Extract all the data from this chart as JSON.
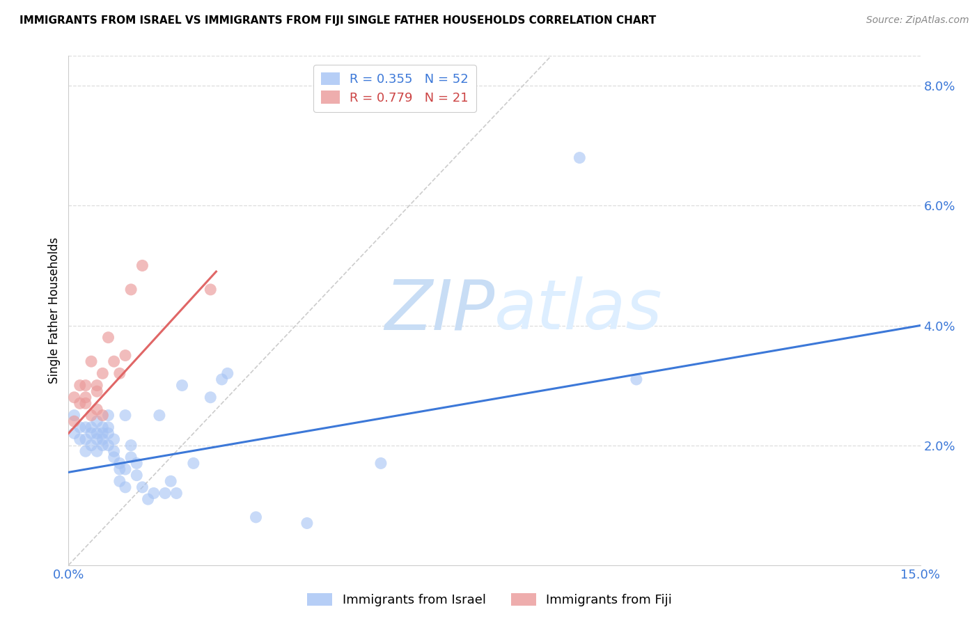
{
  "title": "IMMIGRANTS FROM ISRAEL VS IMMIGRANTS FROM FIJI SINGLE FATHER HOUSEHOLDS CORRELATION CHART",
  "source": "Source: ZipAtlas.com",
  "ylabel": "Single Father Households",
  "xlim": [
    0.0,
    0.15
  ],
  "ylim": [
    0.0,
    0.085
  ],
  "xticks": [
    0.0,
    0.03,
    0.06,
    0.09,
    0.12,
    0.15
  ],
  "xticklabels": [
    "0.0%",
    "",
    "",
    "",
    "",
    "15.0%"
  ],
  "ytick_positions": [
    0.0,
    0.02,
    0.04,
    0.06,
    0.08
  ],
  "yticklabels": [
    "",
    "2.0%",
    "4.0%",
    "6.0%",
    "8.0%"
  ],
  "israel_color": "#a4c2f4",
  "fiji_color": "#ea9999",
  "israel_line_color": "#3c78d8",
  "fiji_line_color": "#e06666",
  "diagonal_color": "#cccccc",
  "watermark_text": "ZIPatlas",
  "watermark_color": "#ddeeff",
  "R_israel": 0.355,
  "N_israel": 52,
  "R_fiji": 0.779,
  "N_fiji": 21,
  "israel_scatter_x": [
    0.001,
    0.001,
    0.002,
    0.002,
    0.003,
    0.003,
    0.003,
    0.004,
    0.004,
    0.004,
    0.005,
    0.005,
    0.005,
    0.005,
    0.006,
    0.006,
    0.006,
    0.006,
    0.007,
    0.007,
    0.007,
    0.007,
    0.008,
    0.008,
    0.008,
    0.009,
    0.009,
    0.009,
    0.01,
    0.01,
    0.01,
    0.011,
    0.011,
    0.012,
    0.012,
    0.013,
    0.014,
    0.015,
    0.016,
    0.017,
    0.018,
    0.019,
    0.02,
    0.022,
    0.025,
    0.027,
    0.028,
    0.033,
    0.042,
    0.055,
    0.09,
    0.1
  ],
  "israel_scatter_y": [
    0.025,
    0.022,
    0.023,
    0.021,
    0.023,
    0.021,
    0.019,
    0.022,
    0.02,
    0.023,
    0.022,
    0.021,
    0.019,
    0.024,
    0.022,
    0.021,
    0.02,
    0.023,
    0.022,
    0.02,
    0.023,
    0.025,
    0.019,
    0.021,
    0.018,
    0.017,
    0.014,
    0.016,
    0.013,
    0.016,
    0.025,
    0.02,
    0.018,
    0.017,
    0.015,
    0.013,
    0.011,
    0.012,
    0.025,
    0.012,
    0.014,
    0.012,
    0.03,
    0.017,
    0.028,
    0.031,
    0.032,
    0.008,
    0.007,
    0.017,
    0.068,
    0.031
  ],
  "fiji_scatter_x": [
    0.001,
    0.001,
    0.002,
    0.002,
    0.003,
    0.003,
    0.003,
    0.004,
    0.004,
    0.005,
    0.005,
    0.005,
    0.006,
    0.006,
    0.007,
    0.008,
    0.009,
    0.01,
    0.011,
    0.013,
    0.025
  ],
  "fiji_scatter_y": [
    0.024,
    0.028,
    0.027,
    0.03,
    0.028,
    0.03,
    0.027,
    0.025,
    0.034,
    0.026,
    0.029,
    0.03,
    0.025,
    0.032,
    0.038,
    0.034,
    0.032,
    0.035,
    0.046,
    0.05,
    0.046
  ],
  "israel_line_x": [
    0.0,
    0.15
  ],
  "israel_line_y": [
    0.0155,
    0.04
  ],
  "fiji_line_x": [
    0.0,
    0.026
  ],
  "fiji_line_y": [
    0.022,
    0.049
  ],
  "legend_labels": [
    "Immigrants from Israel",
    "Immigrants from Fiji"
  ]
}
